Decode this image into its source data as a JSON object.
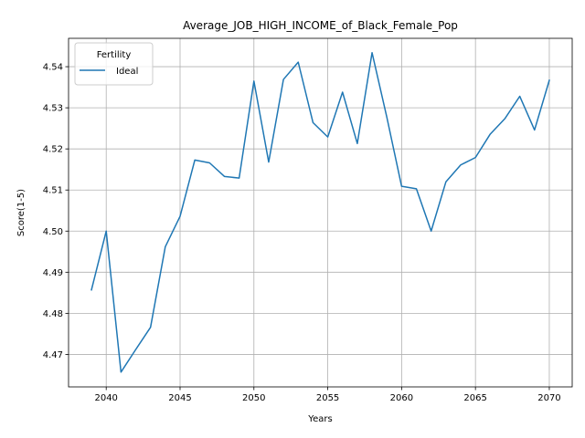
{
  "chart_data": {
    "type": "line",
    "title": "Average_JOB_HIGH_INCOME_of_Black_Female_Pop",
    "xlabel": "Years",
    "ylabel": "Score(1-5)",
    "xlim": [
      2037.45,
      2071.55
    ],
    "ylim": [
      4.4621,
      4.5469
    ],
    "xticks": [
      2040,
      2045,
      2050,
      2055,
      2060,
      2065,
      2070
    ],
    "yticks": [
      4.47,
      4.48,
      4.49,
      4.5,
      4.51,
      4.52,
      4.53,
      4.54
    ],
    "grid": true,
    "legend": {
      "title": "Fertility",
      "placement": "top-left"
    },
    "series": [
      {
        "name": "Ideal",
        "color": "#1f77b4",
        "x": [
          2039,
          2040,
          2041,
          2042,
          2043,
          2044,
          2045,
          2046,
          2047,
          2048,
          2049,
          2050,
          2051,
          2052,
          2053,
          2054,
          2055,
          2056,
          2057,
          2058,
          2059,
          2060,
          2061,
          2062,
          2063,
          2064,
          2065,
          2066,
          2067,
          2068,
          2069,
          2070
        ],
        "values": [
          4.4857,
          4.5,
          4.4657,
          4.4712,
          4.4766,
          4.4962,
          4.5036,
          4.5173,
          4.5166,
          4.5133,
          4.5129,
          4.5365,
          4.5168,
          4.5369,
          4.5411,
          4.5264,
          4.5229,
          4.5338,
          4.5213,
          4.5434,
          4.5277,
          4.5109,
          4.5103,
          4.5,
          4.512,
          4.5161,
          4.5179,
          4.5236,
          4.5274,
          4.5328,
          4.5246,
          4.5367
        ]
      }
    ]
  }
}
